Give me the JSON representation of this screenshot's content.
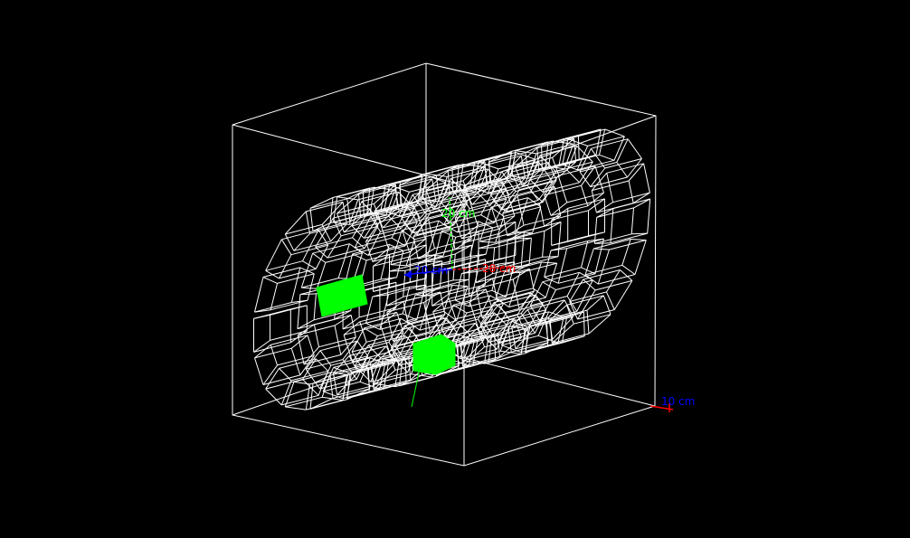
{
  "viewer": {
    "background": "#000000",
    "wire_color": "#ffffff",
    "highlight_color": "#00ff00"
  },
  "axes": {
    "x": {
      "label": "20 cm",
      "color": "#ff0000"
    },
    "y": {
      "label": "20 cm",
      "color": "#00ff00"
    },
    "z": {
      "label": "20 cm",
      "color": "#0000ff"
    }
  },
  "scale": {
    "label": "10 cm",
    "color": "#0000ff",
    "bar_color": "#ff0000"
  }
}
